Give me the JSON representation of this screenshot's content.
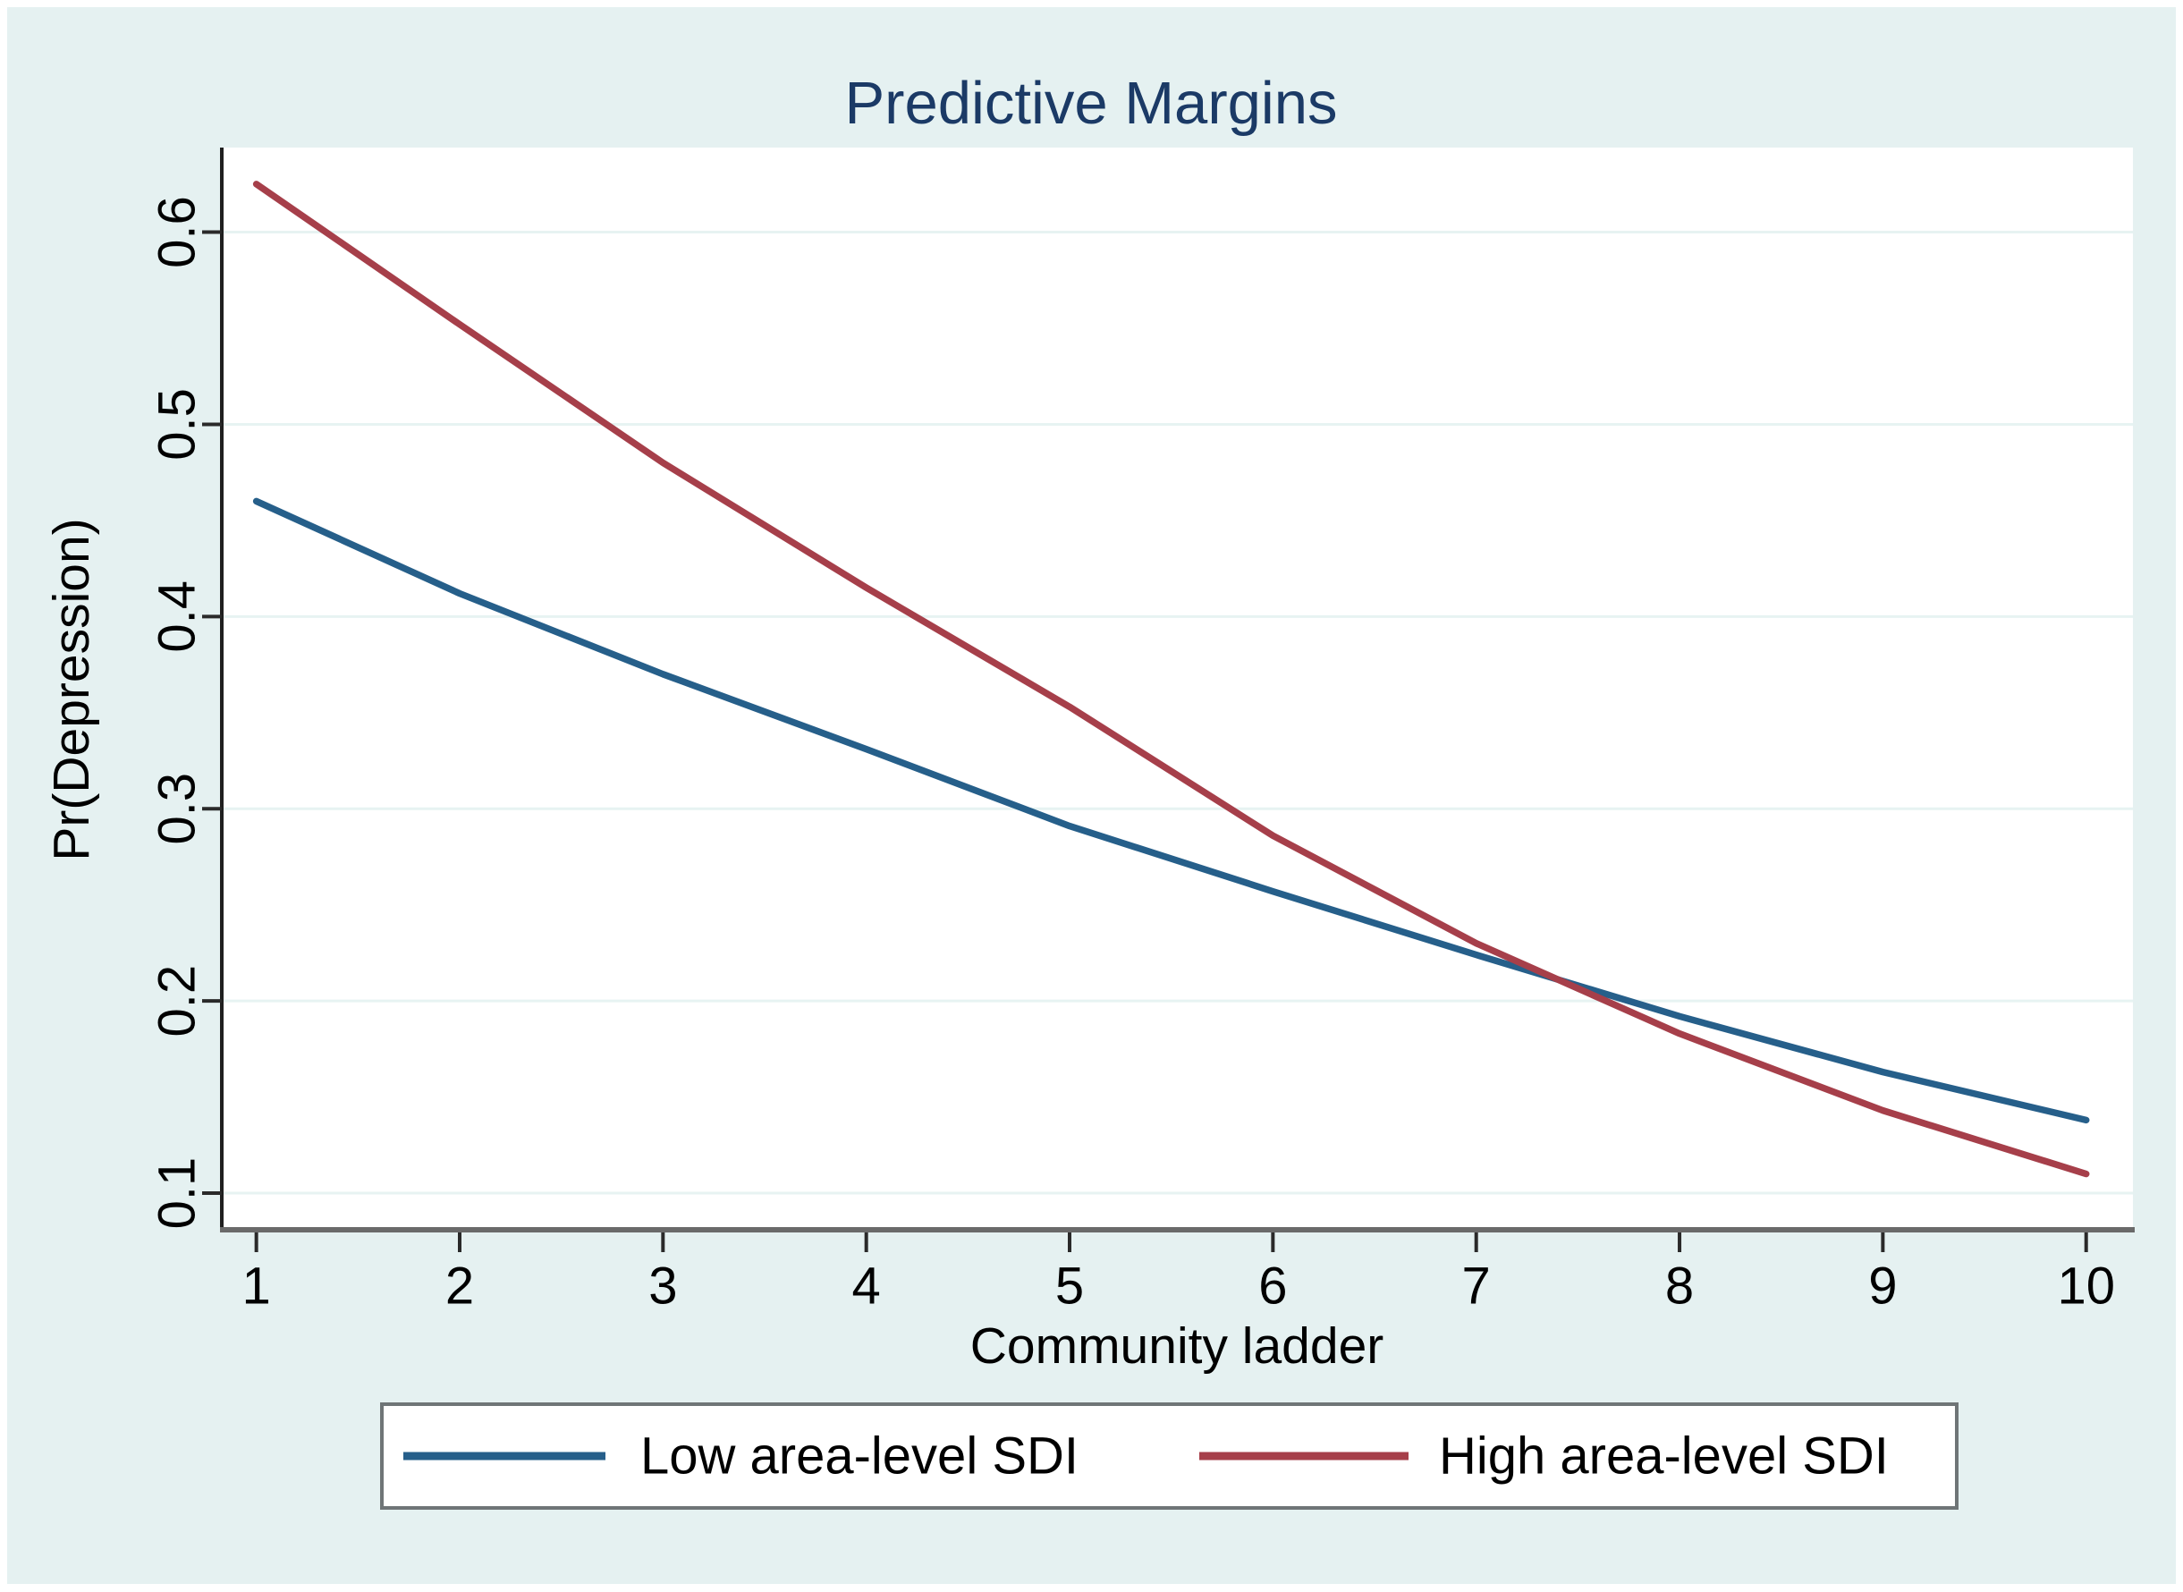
{
  "figure": {
    "kind": "stata-style predictive margins line plot"
  },
  "chart_data": {
    "type": "line",
    "title": "Predictive Margins",
    "xlabel": "Community ladder",
    "ylabel": "Pr(Depression)",
    "x": [
      1,
      2,
      3,
      4,
      5,
      6,
      7,
      8,
      9,
      10
    ],
    "xticks": [
      1,
      2,
      3,
      4,
      5,
      6,
      7,
      8,
      9,
      10
    ],
    "yticks": [
      0.1,
      0.2,
      0.3,
      0.4,
      0.5,
      0.6
    ],
    "xlim": [
      0.83,
      10.23
    ],
    "ylim": [
      0.08,
      0.644
    ],
    "grid": "horizontal",
    "legend_position": "bottom",
    "series": [
      {
        "name": "Low area-level SDI",
        "color": "#265f8a",
        "values": [
          0.46,
          0.412,
          0.37,
          0.331,
          0.291,
          0.257,
          0.224,
          0.192,
          0.163,
          0.138
        ]
      },
      {
        "name": "High area-level SDI",
        "color": "#a63f4a",
        "values": [
          0.625,
          0.552,
          0.48,
          0.415,
          0.353,
          0.286,
          0.23,
          0.183,
          0.143,
          0.11
        ]
      }
    ],
    "crossing_point": {
      "x": 7.5,
      "y": 0.2
    }
  },
  "colors": {
    "page_margin": "#ffffff",
    "background": "#e5f1f1",
    "plot_background": "#ffffff",
    "gridline": "#e7f3f2",
    "title": "#1b3a66",
    "tick_text": "#000000",
    "axis_text": "#000000",
    "y_axis_line": "#1f1f1f",
    "x_axis_line": "#6a6a6a",
    "tick_mark": "#2a2a2a",
    "legend_border": "#6f7577",
    "legend_background": "#ffffff",
    "legend_text": "#000000"
  }
}
